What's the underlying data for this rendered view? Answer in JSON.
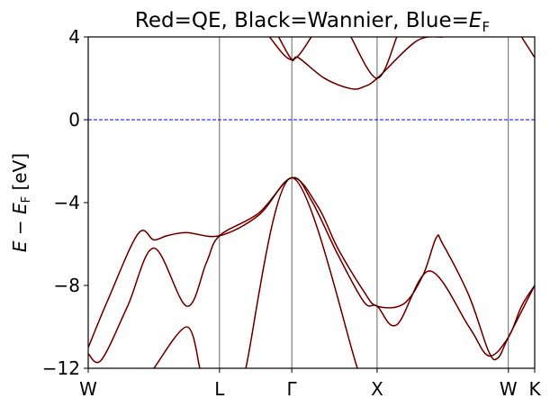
{
  "chart_data": {
    "type": "line",
    "title_parts": {
      "prefix": "Red=QE, Black=Wannier, Blue=",
      "sym": "E",
      "sub": "F"
    },
    "ylabel_parts": {
      "e1": "E",
      "minus": " − ",
      "e2": "E",
      "sub": "F",
      "unit": " [eV]"
    },
    "xlabel": "",
    "ylim": [
      -12,
      4
    ],
    "yticks": [
      -12,
      -8,
      -4,
      0,
      4
    ],
    "ytick_labels": [
      "−12",
      "−8",
      "−4",
      "0",
      "4"
    ],
    "kpath": [
      "W",
      "L",
      "Γ",
      "X",
      "W",
      "K"
    ],
    "kpath_pos": [
      0,
      1.0,
      1.55,
      2.2,
      3.2,
      3.4
    ],
    "fermi_level": 0,
    "colors": {
      "qe": "#ff0000",
      "wannier": "#000000",
      "fermi": "#0000ff"
    },
    "series": [
      {
        "name": "QE",
        "color": "#ff0000",
        "bands": [
          [
            [
              0,
              -11.3
            ],
            [
              0.1,
              -11.6
            ],
            [
              0.3,
              -9.0
            ],
            [
              0.5,
              -6.2
            ],
            [
              0.75,
              -9.0
            ],
            [
              0.9,
              -6.9
            ],
            [
              1.0,
              -5.6
            ],
            [
              1.3,
              -4.5
            ],
            [
              1.55,
              -2.8
            ],
            [
              1.7,
              -3.9
            ],
            [
              1.9,
              -6.5
            ],
            [
              2.1,
              -8.8
            ],
            [
              2.2,
              -9.0
            ],
            [
              2.35,
              -9.9
            ],
            [
              2.6,
              -7.3
            ],
            [
              2.9,
              -10.0
            ],
            [
              3.05,
              -11.4
            ],
            [
              3.2,
              -10.5
            ],
            [
              3.3,
              -9.0
            ],
            [
              3.4,
              -8.0
            ]
          ],
          [
            [
              0,
              -11.0
            ],
            [
              0.15,
              -8.7
            ],
            [
              0.38,
              -5.5
            ],
            [
              0.5,
              -5.8
            ],
            [
              0.6,
              -5.6
            ],
            [
              0.75,
              -5.45
            ],
            [
              1.0,
              -5.6
            ],
            [
              1.3,
              -4.6
            ],
            [
              1.55,
              -2.8
            ],
            [
              1.75,
              -4.2
            ],
            [
              1.9,
              -6.2
            ],
            [
              2.1,
              -8.3
            ],
            [
              2.2,
              -9.0
            ],
            [
              2.4,
              -8.9
            ],
            [
              2.55,
              -7.5
            ],
            [
              2.65,
              -5.7
            ],
            [
              2.7,
              -6.0
            ],
            [
              2.9,
              -8.5
            ],
            [
              3.05,
              -11.2
            ],
            [
              3.12,
              -11.5
            ],
            [
              3.2,
              -10.5
            ],
            [
              3.4,
              -8.0
            ]
          ],
          [
            [
              0.5,
              -12.0
            ],
            [
              0.75,
              -10.0
            ],
            [
              0.85,
              -12.0
            ]
          ],
          [
            [
              1.2,
              -12.0
            ],
            [
              1.55,
              -2.8
            ],
            [
              2.05,
              -12.0
            ]
          ],
          [
            [
              1.45,
              4.0
            ],
            [
              1.55,
              2.9
            ],
            [
              1.6,
              3.0
            ],
            [
              1.8,
              2.0
            ],
            [
              2.0,
              1.5
            ],
            [
              2.1,
              1.6
            ],
            [
              2.2,
              2.0
            ],
            [
              2.5,
              3.8
            ],
            [
              2.7,
              4.0
            ]
          ],
          [
            [
              1.38,
              4.0
            ],
            [
              1.55,
              2.9
            ],
            [
              1.7,
              4.0
            ]
          ],
          [
            [
              2.0,
              4.0
            ],
            [
              2.2,
              2.0
            ],
            [
              2.35,
              4.0
            ]
          ],
          [
            [
              3.3,
              4.0
            ],
            [
              3.4,
              3.0
            ]
          ]
        ]
      },
      {
        "name": "Wannier",
        "color": "#000000",
        "bands": [
          [
            [
              0,
              -11.3
            ],
            [
              0.1,
              -11.6
            ],
            [
              0.3,
              -9.0
            ],
            [
              0.5,
              -6.2
            ],
            [
              0.75,
              -9.0
            ],
            [
              0.9,
              -6.9
            ],
            [
              1.0,
              -5.6
            ],
            [
              1.3,
              -4.5
            ],
            [
              1.55,
              -2.8
            ],
            [
              1.7,
              -3.9
            ],
            [
              1.9,
              -6.5
            ],
            [
              2.1,
              -8.8
            ],
            [
              2.2,
              -9.0
            ],
            [
              2.35,
              -9.9
            ],
            [
              2.6,
              -7.3
            ],
            [
              2.9,
              -10.0
            ],
            [
              3.05,
              -11.4
            ],
            [
              3.2,
              -10.5
            ],
            [
              3.3,
              -9.0
            ],
            [
              3.4,
              -8.0
            ]
          ],
          [
            [
              0,
              -11.0
            ],
            [
              0.15,
              -8.7
            ],
            [
              0.38,
              -5.5
            ],
            [
              0.5,
              -5.8
            ],
            [
              0.6,
              -5.6
            ],
            [
              0.75,
              -5.45
            ],
            [
              1.0,
              -5.6
            ],
            [
              1.3,
              -4.6
            ],
            [
              1.55,
              -2.8
            ],
            [
              1.75,
              -4.2
            ],
            [
              1.9,
              -6.2
            ],
            [
              2.1,
              -8.3
            ],
            [
              2.2,
              -9.0
            ],
            [
              2.4,
              -8.9
            ],
            [
              2.55,
              -7.5
            ],
            [
              2.65,
              -5.7
            ],
            [
              2.7,
              -6.0
            ],
            [
              2.9,
              -8.5
            ],
            [
              3.05,
              -11.2
            ],
            [
              3.12,
              -11.5
            ],
            [
              3.2,
              -10.5
            ],
            [
              3.4,
              -8.0
            ]
          ],
          [
            [
              0.5,
              -12.0
            ],
            [
              0.75,
              -10.0
            ],
            [
              0.85,
              -12.0
            ]
          ],
          [
            [
              1.2,
              -12.0
            ],
            [
              1.55,
              -2.8
            ],
            [
              2.05,
              -12.0
            ]
          ],
          [
            [
              1.45,
              4.0
            ],
            [
              1.55,
              2.9
            ],
            [
              1.6,
              3.0
            ],
            [
              1.8,
              2.0
            ],
            [
              2.0,
              1.5
            ],
            [
              2.1,
              1.6
            ],
            [
              2.2,
              2.0
            ],
            [
              2.5,
              3.8
            ],
            [
              2.7,
              4.0
            ]
          ],
          [
            [
              1.38,
              4.0
            ],
            [
              1.55,
              2.9
            ],
            [
              1.7,
              4.0
            ]
          ],
          [
            [
              2.0,
              4.0
            ],
            [
              2.2,
              2.0
            ],
            [
              2.35,
              4.0
            ]
          ],
          [
            [
              3.3,
              4.0
            ],
            [
              3.4,
              3.0
            ]
          ]
        ]
      }
    ],
    "grid": false,
    "legend": "none"
  }
}
